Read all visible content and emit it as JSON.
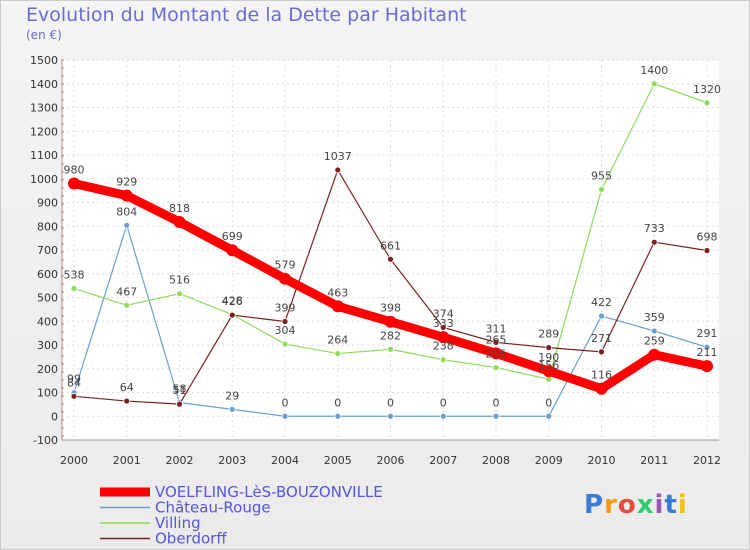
{
  "title": "Evolution du Montant de la Dette par Habitant",
  "unit": "(en €)",
  "logo": "Proxiti",
  "chart_data": {
    "type": "line",
    "x": [
      "2000",
      "2001",
      "2002",
      "2003",
      "2004",
      "2005",
      "2006",
      "2007",
      "2008",
      "2009",
      "2010",
      "2011",
      "2012"
    ],
    "ylim": [
      -100,
      1500
    ],
    "yticks": [
      -100,
      0,
      100,
      200,
      300,
      400,
      500,
      600,
      700,
      800,
      900,
      1000,
      1100,
      1200,
      1300,
      1400,
      1500
    ],
    "grid": true,
    "legend_position": "bottom-left",
    "series": [
      {
        "name": "VOELFLING-LèS-BOUZONVILLE",
        "color": "#ff0000",
        "values": [
          980,
          929,
          818,
          699,
          579,
          463,
          398,
          333,
          265,
          190,
          116,
          259,
          211
        ]
      },
      {
        "name": "Château-Rouge",
        "color": "#6a9fd0",
        "values": [
          99,
          804,
          58,
          29,
          0,
          0,
          0,
          0,
          0,
          0,
          422,
          359,
          291
        ]
      },
      {
        "name": "Villing",
        "color": "#8edc5a",
        "values": [
          538,
          467,
          516,
          428,
          304,
          264,
          282,
          238,
          205,
          156,
          955,
          1400,
          1320
        ]
      },
      {
        "name": "Oberdorff",
        "color": "#7a2020",
        "values": [
          84,
          64,
          51,
          426,
          399,
          1037,
          661,
          374,
          311,
          289,
          271,
          733,
          698
        ]
      }
    ]
  }
}
